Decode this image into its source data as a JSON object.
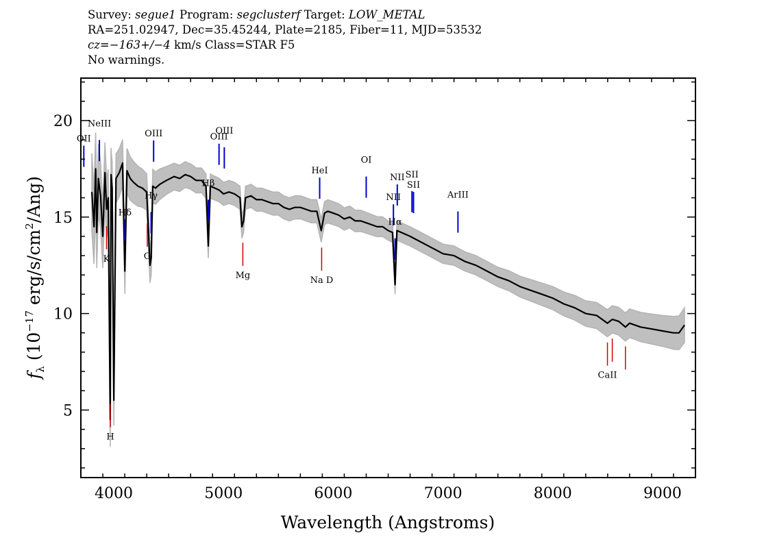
{
  "header": {
    "line1": {
      "survey_label": "Survey: ",
      "survey": "segue1",
      "program_label": " Program: ",
      "program": "segclusterf",
      "target_label": " Target: ",
      "target": "LOW_METAL"
    },
    "line2": "RA=251.02947, Dec=35.45244, Plate=2185, Fiber=11, MJD=53532",
    "line3": {
      "cz": "cz=−163+/−4",
      "units": " km/s Class=STAR F5"
    },
    "line4": "No warnings."
  },
  "chart_data": {
    "type": "line",
    "title": "",
    "xlabel": "Wavelength (Angstroms)",
    "ylabel": "f_λ (10^-17 erg/s/cm^2/Ang)",
    "xlim": [
      3700,
      9300
    ],
    "ylim": [
      1.5,
      22.2
    ],
    "grid": false,
    "x_ticks": [
      4000,
      5000,
      6000,
      7000,
      8000,
      9000
    ],
    "y_ticks": [
      5,
      10,
      15,
      20
    ],
    "colors": {
      "spectrum": "#000000",
      "error": "#b4b4b4",
      "emission": "#0000d0",
      "absorption": "#d00000"
    },
    "series": [
      {
        "role": "spectrum",
        "x": [
          3800,
          3820,
          3835,
          3845,
          3860,
          3880,
          3900,
          3920,
          3935,
          3950,
          3960,
          3968,
          3975,
          3985,
          4000,
          4020,
          4050,
          4080,
          4101,
          4120,
          4150,
          4180,
          4220,
          4260,
          4300,
          4330,
          4341,
          4355,
          4380,
          4420,
          4480,
          4550,
          4600,
          4650,
          4700,
          4750,
          4800,
          4840,
          4861,
          4880,
          4920,
          4960,
          5000,
          5050,
          5100,
          5150,
          5167,
          5183,
          5200,
          5250,
          5300,
          5350,
          5400,
          5450,
          5500,
          5550,
          5600,
          5650,
          5700,
          5750,
          5800,
          5850,
          5890,
          5920,
          5950,
          6000,
          6050,
          6100,
          6150,
          6200,
          6250,
          6300,
          6350,
          6400,
          6450,
          6500,
          6540,
          6563,
          6580,
          6620,
          6700,
          6800,
          6900,
          7000,
          7100,
          7200,
          7300,
          7400,
          7500,
          7600,
          7700,
          7800,
          7900,
          8000,
          8100,
          8200,
          8300,
          8400,
          8498,
          8542,
          8600,
          8662,
          8700,
          8800,
          8900,
          9000,
          9100,
          9150,
          9200
        ],
        "y": [
          16.3,
          14.5,
          17.5,
          14.2,
          17.0,
          16.1,
          14.0,
          17.3,
          15.4,
          16.0,
          9.5,
          4.5,
          17.2,
          16.5,
          5.5,
          17.0,
          17.3,
          17.8,
          12.2,
          17.4,
          17.0,
          16.8,
          16.6,
          16.5,
          16.3,
          12.5,
          12.9,
          16.6,
          16.5,
          16.7,
          16.9,
          17.1,
          17.0,
          17.2,
          17.1,
          16.9,
          16.9,
          16.6,
          13.5,
          16.6,
          16.5,
          16.4,
          16.2,
          16.3,
          16.2,
          16.0,
          14.5,
          14.8,
          16.0,
          16.1,
          15.9,
          15.9,
          15.8,
          15.7,
          15.7,
          15.5,
          15.4,
          15.5,
          15.5,
          15.4,
          15.3,
          15.3,
          14.3,
          15.2,
          15.3,
          15.2,
          15.1,
          14.9,
          15.0,
          14.8,
          14.8,
          14.7,
          14.6,
          14.5,
          14.5,
          14.3,
          14.2,
          11.5,
          14.3,
          14.2,
          14.0,
          13.7,
          13.4,
          13.1,
          13.0,
          12.7,
          12.5,
          12.2,
          11.9,
          11.7,
          11.4,
          11.2,
          11.0,
          10.8,
          10.5,
          10.3,
          10.0,
          9.9,
          9.5,
          9.7,
          9.6,
          9.3,
          9.5,
          9.3,
          9.2,
          9.1,
          9.0,
          9.0,
          9.4
        ]
      },
      {
        "role": "error",
        "x": [
          3800,
          4000,
          4500,
          5000,
          5500,
          6000,
          6500,
          7000,
          7500,
          8000,
          8500,
          9000,
          9200
        ],
        "y": [
          2.0,
          1.3,
          0.7,
          0.6,
          0.6,
          0.6,
          0.5,
          0.5,
          0.5,
          0.6,
          0.7,
          0.8,
          0.9
        ]
      }
    ],
    "emission_lines": [
      {
        "label": "OII",
        "wavelength": 3727
      },
      {
        "label": "NeIII",
        "wavelength": 3869
      },
      {
        "label": "Hδ",
        "wavelength": 4102
      },
      {
        "label": "Hγ",
        "wavelength": 4340
      },
      {
        "label": "OIII",
        "wavelength": 4363
      },
      {
        "label": "Hβ",
        "wavelength": 4861
      },
      {
        "label": "OIII",
        "wavelength": 4959
      },
      {
        "label": "OIII",
        "wavelength": 5007
      },
      {
        "label": "HeI",
        "wavelength": 5876
      },
      {
        "label": "OI",
        "wavelength": 6300
      },
      {
        "label": "NII",
        "wavelength": 6548
      },
      {
        "label": "Hα",
        "wavelength": 6563
      },
      {
        "label": "NII",
        "wavelength": 6583
      },
      {
        "label": "SII",
        "wavelength": 6717
      },
      {
        "label": "SII",
        "wavelength": 6731
      },
      {
        "label": "ArIII",
        "wavelength": 7136
      }
    ],
    "absorption_lines": [
      {
        "label": "K",
        "wavelength": 3934
      },
      {
        "label": "H",
        "wavelength": 3969
      },
      {
        "label": "G",
        "wavelength": 4305
      },
      {
        "label": "Mg",
        "wavelength": 5176
      },
      {
        "label": "Na D",
        "wavelength": 5894
      },
      {
        "label": "CaII",
        "wavelength": 8498
      },
      {
        "label": "CaII",
        "wavelength": 8542
      },
      {
        "label": "CaII",
        "wavelength": 8662
      }
    ],
    "line_labels_printed": [
      "OII",
      "NeIII",
      "Hδ",
      "Hγ",
      "OIII",
      "Hβ",
      "OIII",
      "HeI",
      "OI",
      "NII",
      "Hα",
      "NII",
      "SII",
      "ArIII",
      "Mg",
      "G",
      "Na D",
      "CaII",
      "K",
      "H"
    ]
  }
}
